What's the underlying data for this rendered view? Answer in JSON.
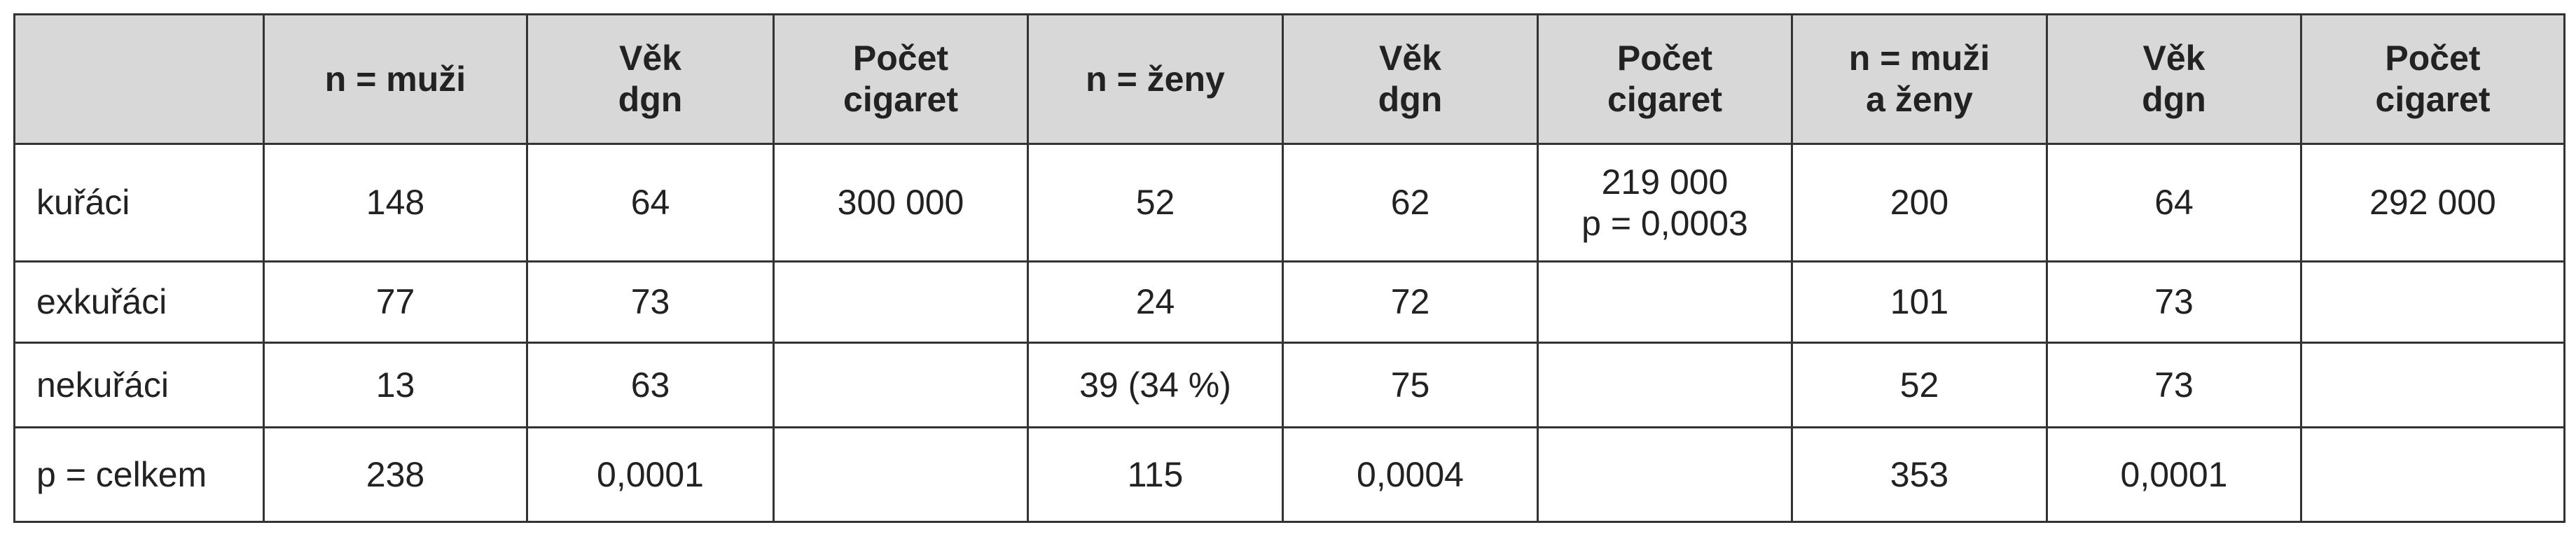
{
  "table": {
    "header": [
      null,
      "n = muži",
      [
        "Věk",
        "dgn"
      ],
      [
        "Počet",
        "cigaret"
      ],
      "n = ženy",
      [
        "Věk",
        "dgn"
      ],
      [
        "Počet",
        "cigaret"
      ],
      [
        "n = muži",
        "a ženy"
      ],
      [
        "Věk",
        "dgn"
      ],
      [
        "Počet",
        "cigaret"
      ]
    ],
    "rows": [
      [
        "kuřáci",
        "148",
        "64",
        "300 000",
        "52",
        "62",
        [
          "219 000",
          "p = 0,0003"
        ],
        "200",
        "64",
        "292 000"
      ],
      [
        "exkuřáci",
        "77",
        "73",
        null,
        "24",
        "72",
        null,
        "101",
        "73",
        null
      ],
      [
        "nekuřáci",
        "13",
        "63",
        null,
        "39 (34 %)",
        "75",
        null,
        "52",
        "73",
        null
      ],
      [
        "p = celkem",
        "238",
        "0,0001",
        null,
        "115",
        "0,0004",
        null,
        "353",
        "0,0001",
        null
      ]
    ]
  }
}
